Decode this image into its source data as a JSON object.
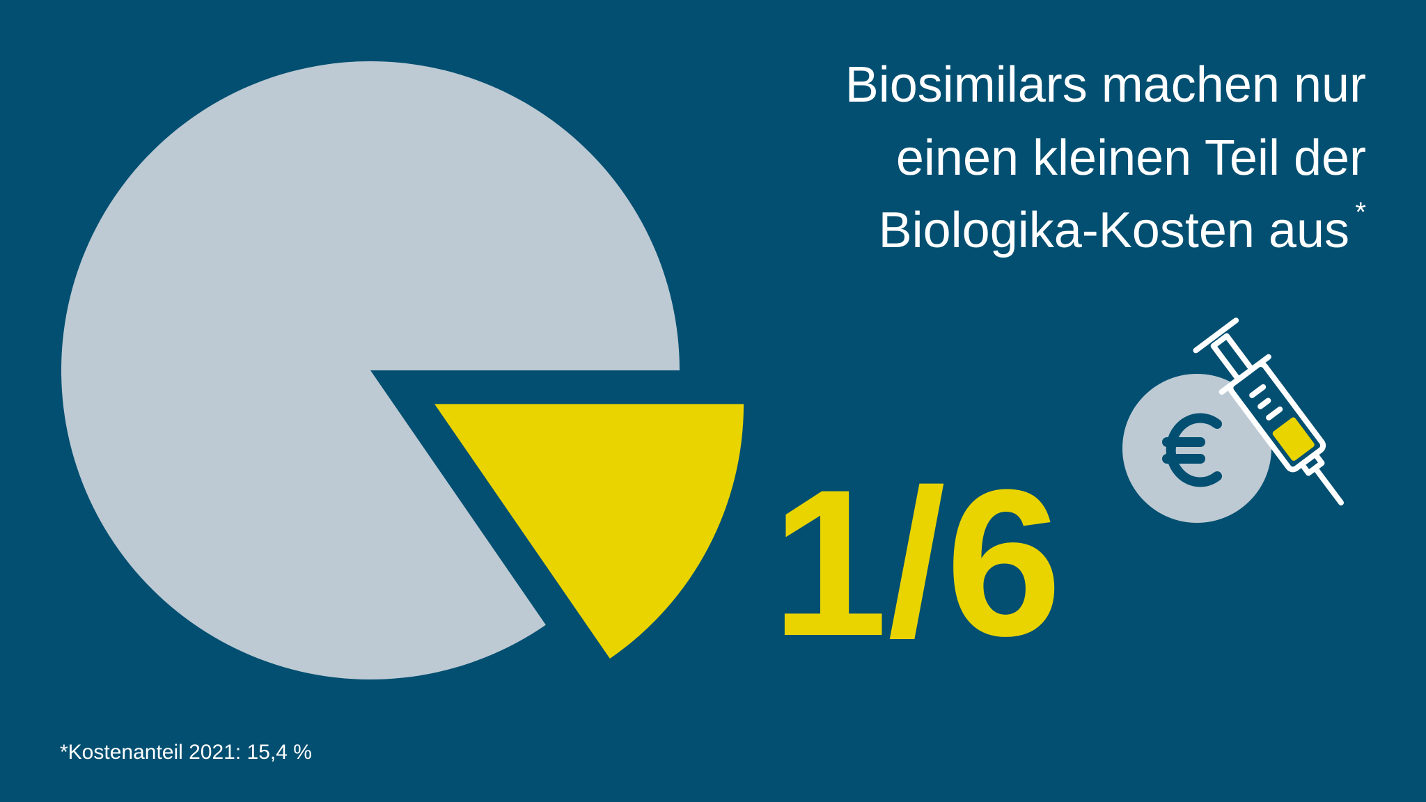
{
  "chart_data": {
    "type": "pie",
    "title": [
      "Biosimilars machen nur",
      "einen kleinen Teil der",
      "Biologika-Kosten aus"
    ],
    "title_mark": "*",
    "annotation": "1/6",
    "note": "*Kostenanteil 2021: 15,4 %",
    "values": [
      15.4,
      84.6
    ],
    "colors": [
      "#e9d400",
      "#bdcad3"
    ],
    "exploded": [
      true,
      false
    ]
  }
}
